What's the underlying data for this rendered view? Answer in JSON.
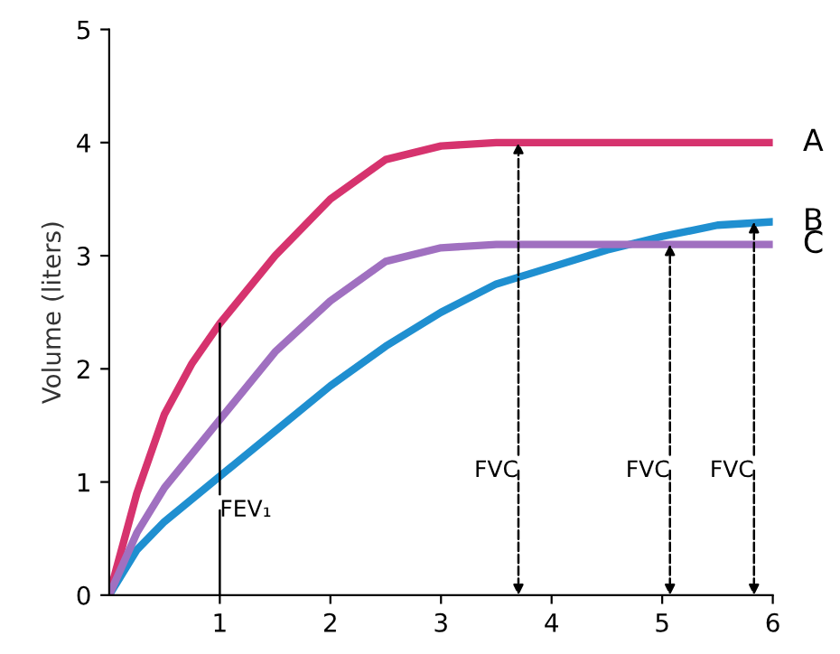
{
  "chart_data": {
    "type": "line",
    "ylabel": "Volume (liters)",
    "xlim": [
      0,
      6
    ],
    "ylim": [
      0,
      5
    ],
    "xticks": [
      1,
      2,
      3,
      4,
      5,
      6
    ],
    "yticks": [
      0,
      1,
      2,
      3,
      4,
      5
    ],
    "grid": false,
    "legend": false,
    "marker": "none",
    "line_style": "solid",
    "series": [
      {
        "name": "A",
        "color": "#d6336e",
        "x": [
          0,
          0.25,
          0.5,
          0.75,
          1,
          1.5,
          2,
          2.5,
          3,
          3.5,
          4,
          5,
          6
        ],
        "values": [
          0,
          0.9,
          1.6,
          2.05,
          2.4,
          3.0,
          3.5,
          3.85,
          3.97,
          4.0,
          4.0,
          4.0,
          4.0
        ]
      },
      {
        "name": "B",
        "color": "#1f8fd0",
        "x": [
          0,
          0.25,
          0.5,
          1,
          1.5,
          2,
          2.5,
          3,
          3.5,
          4,
          4.5,
          5,
          5.5,
          6
        ],
        "values": [
          0,
          0.4,
          0.65,
          1.05,
          1.45,
          1.85,
          2.2,
          2.5,
          2.75,
          2.9,
          3.05,
          3.17,
          3.27,
          3.3
        ]
      },
      {
        "name": "C",
        "color": "#a070c0",
        "x": [
          0,
          0.25,
          0.5,
          1,
          1.5,
          2,
          2.5,
          3,
          3.5,
          4,
          5,
          6
        ],
        "values": [
          0,
          0.55,
          0.95,
          1.55,
          2.15,
          2.6,
          2.95,
          3.07,
          3.1,
          3.1,
          3.1,
          3.1
        ]
      }
    ],
    "annotations": [
      {
        "text": "FEV₁",
        "x": 1,
        "y": 2.4
      },
      {
        "text": "FVC",
        "x": 3.7,
        "y": 4.0
      },
      {
        "text": "FVC",
        "x": 5.07,
        "y": 3.1
      },
      {
        "text": "FVC",
        "x": 5.83,
        "y": 3.3
      }
    ]
  }
}
